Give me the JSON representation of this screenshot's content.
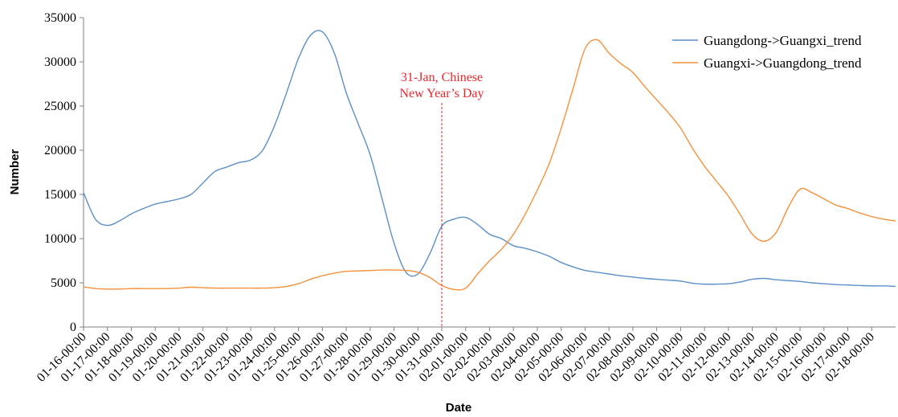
{
  "chart_data": {
    "type": "line",
    "xlabel": "Date",
    "ylabel": "Number",
    "ylim": [
      0,
      35000
    ],
    "yticks": [
      0,
      5000,
      10000,
      15000,
      20000,
      25000,
      30000,
      35000
    ],
    "grid": false,
    "legend_position": "top-right",
    "categories": [
      "01-16-00:00",
      "01-17-00:00",
      "01-18-00:00",
      "01-19-00:00",
      "01-20-00:00",
      "01-21-00:00",
      "01-22-00:00",
      "01-23-00:00",
      "01-24-00:00",
      "01-25-00:00",
      "01-26-00:00",
      "01-27-00:00",
      "01-28-00:00",
      "01-29-00:00",
      "01-30-00:00",
      "01-31-00:00",
      "02-01-00:00",
      "02-02-00:00",
      "02-03-00:00",
      "02-04-00:00",
      "02-05-00:00",
      "02-06-00:00",
      "02-07-00:00",
      "02-08-00:00",
      "02-09-00:00",
      "02-10-00:00",
      "02-11-00:00",
      "02-12-00:00",
      "02-13-00:00",
      "02-14-00:00",
      "02-15-00:00",
      "02-16-00:00",
      "02-17-00:00",
      "02-18-00:00"
    ],
    "x": [
      0,
      0.5,
      1,
      1.5,
      2,
      2.5,
      3,
      3.5,
      4,
      4.5,
      5,
      5.5,
      6,
      6.5,
      7,
      7.5,
      8,
      8.5,
      9,
      9.5,
      10,
      10.5,
      11,
      11.5,
      12,
      12.5,
      13,
      13.5,
      14,
      14.5,
      15,
      15.5,
      16,
      16.5,
      17,
      17.5,
      18,
      18.5,
      19,
      19.5,
      20,
      20.5,
      21,
      21.5,
      22,
      22.5,
      23,
      23.5,
      24,
      24.5,
      25,
      25.5,
      26,
      26.5,
      27,
      27.5,
      28,
      28.5,
      29,
      29.5,
      30,
      30.5,
      31,
      31.5,
      32,
      32.5,
      33,
      33.5,
      34
    ],
    "series": [
      {
        "name": "Guangdong->Guangxi_trend",
        "color": "#5b8fc9",
        "values": [
          15200,
          12200,
          11500,
          12000,
          12800,
          13400,
          13900,
          14200,
          14500,
          15000,
          16300,
          17600,
          18100,
          18600,
          18900,
          20000,
          22800,
          26500,
          30400,
          33000,
          33400,
          31000,
          26500,
          23000,
          19500,
          14500,
          9500,
          6200,
          6000,
          8300,
          11400,
          12200,
          12400,
          11600,
          10500,
          10000,
          9200,
          8900,
          8500,
          8000,
          7300,
          6800,
          6400,
          6200,
          6000,
          5800,
          5650,
          5500,
          5400,
          5300,
          5200,
          4950,
          4850,
          4850,
          4900,
          5100,
          5400,
          5500,
          5350,
          5250,
          5150,
          5000,
          4900,
          4800,
          4750,
          4700,
          4650,
          4650,
          4600
        ]
      },
      {
        "name": "Guangxi->Guangdong_trend",
        "color": "#f4913c",
        "values": [
          4550,
          4350,
          4300,
          4300,
          4350,
          4350,
          4350,
          4350,
          4400,
          4500,
          4450,
          4400,
          4400,
          4400,
          4400,
          4400,
          4450,
          4600,
          4900,
          5400,
          5800,
          6100,
          6300,
          6350,
          6400,
          6450,
          6450,
          6400,
          6200,
          5600,
          4700,
          4250,
          4400,
          6000,
          7500,
          8800,
          10500,
          12800,
          15500,
          18500,
          22500,
          27000,
          31500,
          32500,
          31000,
          29800,
          28800,
          27200,
          25700,
          24200,
          22500,
          20200,
          18200,
          16500,
          14800,
          12700,
          10500,
          9700,
          10700,
          13500,
          15600,
          15200,
          14500,
          13800,
          13400,
          12900,
          12500,
          12200,
          12000
        ]
      }
    ],
    "annotations": [
      {
        "x": 15,
        "lines": [
          "31-Jan, Chinese",
          "New Year’s Day"
        ],
        "color": "#e8272d"
      }
    ]
  }
}
